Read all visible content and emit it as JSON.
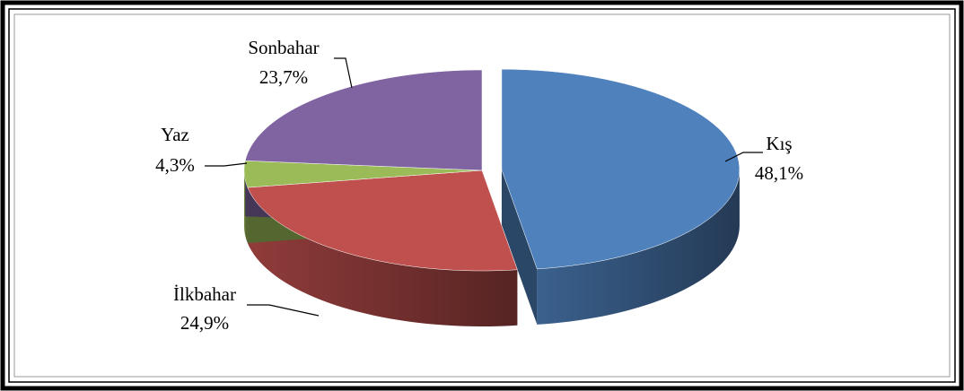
{
  "chart_data": {
    "type": "pie3d",
    "categories": [
      "Kış",
      "İlkbahar",
      "Yaz",
      "Sonbahar"
    ],
    "values": [
      48.1,
      24.9,
      4.3,
      23.7
    ],
    "value_labels": [
      "48,1%",
      "24,9%",
      "4,3%",
      "23,7%"
    ],
    "colors": [
      "#4f81bd",
      "#c0504d",
      "#9bbb59",
      "#8064a2"
    ],
    "exploded": [
      "Kış"
    ]
  }
}
